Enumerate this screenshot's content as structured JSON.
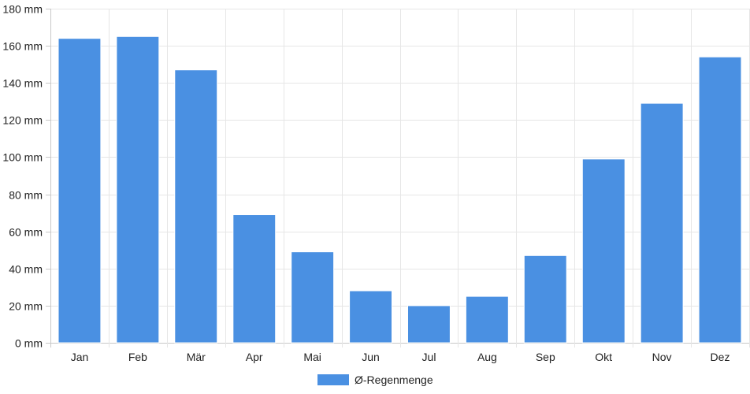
{
  "chart_data": {
    "type": "bar",
    "categories": [
      "Jan",
      "Feb",
      "Mär",
      "Apr",
      "Mai",
      "Jun",
      "Jul",
      "Aug",
      "Sep",
      "Okt",
      "Nov",
      "Dez"
    ],
    "series": [
      {
        "name": "Ø-Regenmenge",
        "color": "#4a90e2",
        "values": [
          164,
          165,
          147,
          69,
          49,
          28,
          20,
          25,
          47,
          99,
          129,
          154
        ]
      }
    ],
    "y_ticks": [
      "0 mm",
      "20 mm",
      "40 mm",
      "60 mm",
      "80 mm",
      "100 mm",
      "120 mm",
      "140 mm",
      "160 mm",
      "180 mm"
    ],
    "ylim": [
      0,
      180
    ],
    "grid": true,
    "legend_position": "bottom"
  }
}
